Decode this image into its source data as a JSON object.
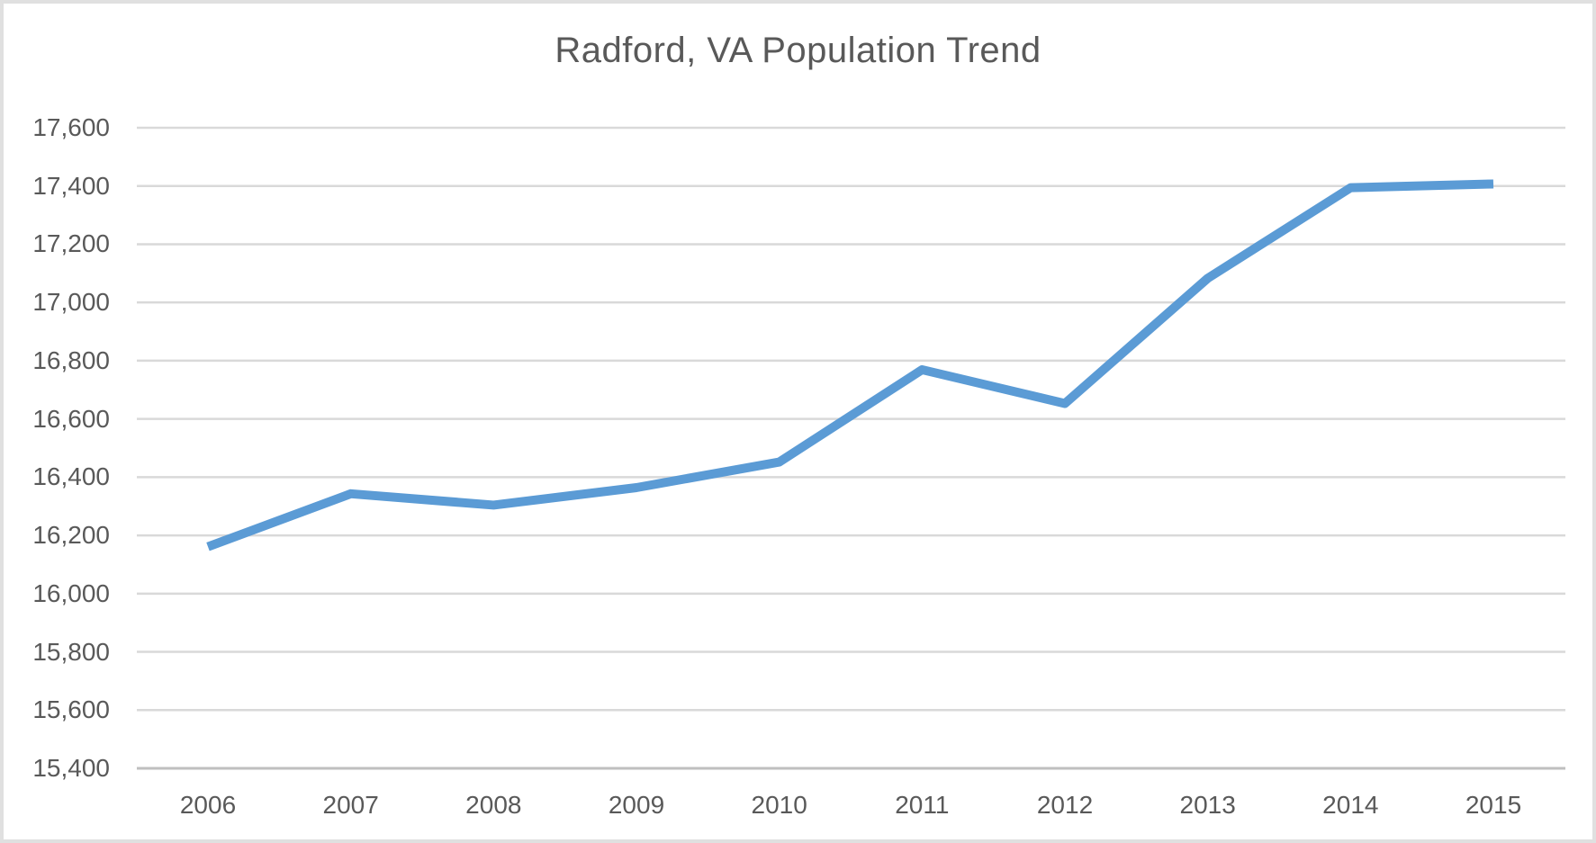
{
  "chart_data": {
    "type": "line",
    "title": "Radford, VA Population Trend",
    "xlabel": "",
    "ylabel": "",
    "categories": [
      "2006",
      "2007",
      "2008",
      "2009",
      "2010",
      "2011",
      "2012",
      "2013",
      "2014",
      "2015"
    ],
    "values": [
      16161,
      16343,
      16304,
      16364,
      16452,
      16769,
      16653,
      17083,
      17394,
      17407
    ],
    "ylim": [
      15400,
      17600
    ],
    "yticks": [
      15400,
      15600,
      15800,
      16000,
      16200,
      16400,
      16600,
      16800,
      17000,
      17200,
      17400,
      17600
    ],
    "grid": "horizontal",
    "legend": false,
    "colors": {
      "line": "#5B9BD5",
      "gridline": "#D9D9D9",
      "axis_line": "#BFBFBF",
      "axis_text": "#595959",
      "title_text": "#595959",
      "frame_border": "#E0E0E0"
    }
  }
}
